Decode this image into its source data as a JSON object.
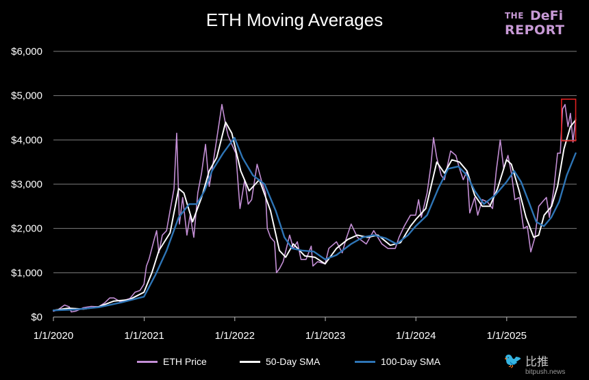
{
  "chart_data": {
    "type": "line",
    "title": "ETH Moving Averages",
    "xlabel": "",
    "ylabel": "",
    "x_ticks": [
      "1/1/2020",
      "1/1/2021",
      "1/1/2022",
      "1/1/2023",
      "1/1/2024",
      "1/1/2025"
    ],
    "y_ticks": [
      "$0",
      "$1,000",
      "$2,000",
      "$3,000",
      "$4,000",
      "$5,000",
      "$6,000"
    ],
    "ylim": [
      0,
      6000
    ],
    "xlim": [
      "2020-01-01",
      "2025-10-10"
    ],
    "grid": true,
    "legend_position": "bottom",
    "series": [
      {
        "name": "ETH Price",
        "color": "#c48fd6",
        "points": [
          [
            "2020-01-01",
            130
          ],
          [
            "2020-01-20",
            165
          ],
          [
            "2020-02-15",
            270
          ],
          [
            "2020-03-05",
            230
          ],
          [
            "2020-03-13",
            115
          ],
          [
            "2020-04-01",
            135
          ],
          [
            "2020-05-01",
            210
          ],
          [
            "2020-06-01",
            240
          ],
          [
            "2020-07-01",
            230
          ],
          [
            "2020-07-25",
            315
          ],
          [
            "2020-08-15",
            430
          ],
          [
            "2020-09-01",
            430
          ],
          [
            "2020-09-25",
            350
          ],
          [
            "2020-10-15",
            380
          ],
          [
            "2020-11-05",
            420
          ],
          [
            "2020-11-25",
            560
          ],
          [
            "2020-12-15",
            600
          ],
          [
            "2020-12-31",
            740
          ],
          [
            "2021-01-10",
            1150
          ],
          [
            "2021-01-20",
            1300
          ],
          [
            "2021-02-10",
            1750
          ],
          [
            "2021-02-20",
            1950
          ],
          [
            "2021-03-01",
            1450
          ],
          [
            "2021-03-15",
            1850
          ],
          [
            "2021-04-01",
            1950
          ],
          [
            "2021-04-15",
            2400
          ],
          [
            "2021-05-01",
            2900
          ],
          [
            "2021-05-12",
            4150
          ],
          [
            "2021-05-23",
            2100
          ],
          [
            "2021-06-05",
            2700
          ],
          [
            "2021-06-22",
            1850
          ],
          [
            "2021-07-05",
            2300
          ],
          [
            "2021-07-20",
            1800
          ],
          [
            "2021-08-05",
            2800
          ],
          [
            "2021-08-20",
            3250
          ],
          [
            "2021-09-05",
            3900
          ],
          [
            "2021-09-20",
            2950
          ],
          [
            "2021-10-05",
            3450
          ],
          [
            "2021-10-25",
            4200
          ],
          [
            "2021-11-10",
            4800
          ],
          [
            "2021-11-25",
            4350
          ],
          [
            "2021-12-05",
            4100
          ],
          [
            "2021-12-20",
            3900
          ],
          [
            "2022-01-05",
            3700
          ],
          [
            "2022-01-22",
            2450
          ],
          [
            "2022-02-10",
            3100
          ],
          [
            "2022-02-24",
            2550
          ],
          [
            "2022-03-10",
            2650
          ],
          [
            "2022-04-01",
            3450
          ],
          [
            "2022-04-20",
            3050
          ],
          [
            "2022-05-05",
            2800
          ],
          [
            "2022-05-12",
            2000
          ],
          [
            "2022-05-25",
            1800
          ],
          [
            "2022-06-10",
            1700
          ],
          [
            "2022-06-18",
            1000
          ],
          [
            "2022-07-01",
            1100
          ],
          [
            "2022-07-15",
            1250
          ],
          [
            "2022-08-10",
            1850
          ],
          [
            "2022-08-25",
            1550
          ],
          [
            "2022-09-10",
            1700
          ],
          [
            "2022-09-25",
            1300
          ],
          [
            "2022-10-15",
            1300
          ],
          [
            "2022-11-05",
            1600
          ],
          [
            "2022-11-12",
            1150
          ],
          [
            "2022-12-01",
            1250
          ],
          [
            "2022-12-31",
            1200
          ],
          [
            "2023-01-15",
            1550
          ],
          [
            "2023-02-15",
            1700
          ],
          [
            "2023-03-10",
            1450
          ],
          [
            "2023-03-25",
            1750
          ],
          [
            "2023-04-15",
            2100
          ],
          [
            "2023-05-10",
            1800
          ],
          [
            "2023-06-15",
            1650
          ],
          [
            "2023-07-15",
            1950
          ],
          [
            "2023-08-17",
            1650
          ],
          [
            "2023-09-10",
            1550
          ],
          [
            "2023-10-10",
            1550
          ],
          [
            "2023-10-25",
            1800
          ],
          [
            "2023-11-15",
            2050
          ],
          [
            "2023-12-10",
            2300
          ],
          [
            "2023-12-31",
            2300
          ],
          [
            "2024-01-12",
            2650
          ],
          [
            "2024-01-23",
            2250
          ],
          [
            "2024-02-15",
            2800
          ],
          [
            "2024-03-01",
            3400
          ],
          [
            "2024-03-12",
            4050
          ],
          [
            "2024-03-25",
            3600
          ],
          [
            "2024-04-12",
            3200
          ],
          [
            "2024-04-25",
            3100
          ],
          [
            "2024-05-20",
            3750
          ],
          [
            "2024-06-10",
            3650
          ],
          [
            "2024-06-25",
            3350
          ],
          [
            "2024-07-10",
            3100
          ],
          [
            "2024-07-25",
            3300
          ],
          [
            "2024-08-05",
            2350
          ],
          [
            "2024-08-25",
            2700
          ],
          [
            "2024-09-06",
            2300
          ],
          [
            "2024-09-25",
            2650
          ],
          [
            "2024-10-15",
            2600
          ],
          [
            "2024-11-05",
            2450
          ],
          [
            "2024-11-20",
            3300
          ],
          [
            "2024-12-06",
            4000
          ],
          [
            "2024-12-20",
            3350
          ],
          [
            "2025-01-06",
            3650
          ],
          [
            "2025-01-20",
            3250
          ],
          [
            "2025-02-03",
            2650
          ],
          [
            "2025-02-20",
            2700
          ],
          [
            "2025-03-10",
            2000
          ],
          [
            "2025-03-25",
            2050
          ],
          [
            "2025-04-08",
            1470
          ],
          [
            "2025-04-25",
            1800
          ],
          [
            "2025-05-10",
            2500
          ],
          [
            "2025-05-25",
            2600
          ],
          [
            "2025-06-10",
            2700
          ],
          [
            "2025-06-22",
            2250
          ],
          [
            "2025-07-10",
            2900
          ],
          [
            "2025-07-25",
            3700
          ],
          [
            "2025-08-05",
            3700
          ],
          [
            "2025-08-14",
            4700
          ],
          [
            "2025-08-24",
            4800
          ],
          [
            "2025-09-05",
            4300
          ],
          [
            "2025-09-15",
            4600
          ],
          [
            "2025-09-25",
            3950
          ],
          [
            "2025-10-06",
            4500
          ]
        ]
      },
      {
        "name": "50-Day SMA",
        "color": "#ffffff",
        "points": [
          [
            "2020-01-01",
            150
          ],
          [
            "2020-03-01",
            200
          ],
          [
            "2020-05-01",
            180
          ],
          [
            "2020-07-01",
            230
          ],
          [
            "2020-09-01",
            360
          ],
          [
            "2020-11-01",
            390
          ],
          [
            "2020-12-31",
            560
          ],
          [
            "2021-02-01",
            1000
          ],
          [
            "2021-03-01",
            1500
          ],
          [
            "2021-04-15",
            1900
          ],
          [
            "2021-05-20",
            2900
          ],
          [
            "2021-06-10",
            2800
          ],
          [
            "2021-07-15",
            2150
          ],
          [
            "2021-08-20",
            2700
          ],
          [
            "2021-09-20",
            3300
          ],
          [
            "2021-10-20",
            3600
          ],
          [
            "2021-11-25",
            4400
          ],
          [
            "2021-12-20",
            4150
          ],
          [
            "2022-01-25",
            3300
          ],
          [
            "2022-02-28",
            2850
          ],
          [
            "2022-04-10",
            3100
          ],
          [
            "2022-05-25",
            2400
          ],
          [
            "2022-06-30",
            1500
          ],
          [
            "2022-07-25",
            1350
          ],
          [
            "2022-08-25",
            1650
          ],
          [
            "2022-10-10",
            1380
          ],
          [
            "2022-11-20",
            1350
          ],
          [
            "2022-12-31",
            1200
          ],
          [
            "2023-02-15",
            1550
          ],
          [
            "2023-04-01",
            1750
          ],
          [
            "2023-05-10",
            1850
          ],
          [
            "2023-06-20",
            1800
          ],
          [
            "2023-08-01",
            1850
          ],
          [
            "2023-09-20",
            1620
          ],
          [
            "2023-10-31",
            1680
          ],
          [
            "2023-12-10",
            2050
          ],
          [
            "2023-12-31",
            2200
          ],
          [
            "2024-02-10",
            2450
          ],
          [
            "2024-03-25",
            3500
          ],
          [
            "2024-04-25",
            3250
          ],
          [
            "2024-05-25",
            3550
          ],
          [
            "2024-06-25",
            3500
          ],
          [
            "2024-07-25",
            3300
          ],
          [
            "2024-08-25",
            2750
          ],
          [
            "2024-09-25",
            2500
          ],
          [
            "2024-10-25",
            2500
          ],
          [
            "2024-11-25",
            2900
          ],
          [
            "2024-12-31",
            3550
          ],
          [
            "2025-01-20",
            3450
          ],
          [
            "2025-02-20",
            2850
          ],
          [
            "2025-03-20",
            2250
          ],
          [
            "2025-04-20",
            1800
          ],
          [
            "2025-05-10",
            1850
          ],
          [
            "2025-06-01",
            2300
          ],
          [
            "2025-07-01",
            2500
          ],
          [
            "2025-07-25",
            2950
          ],
          [
            "2025-08-20",
            3800
          ],
          [
            "2025-09-15",
            4300
          ],
          [
            "2025-10-06",
            4450
          ]
        ]
      },
      {
        "name": "100-Day SMA",
        "color": "#2e75b6",
        "points": [
          [
            "2020-01-01",
            150
          ],
          [
            "2020-04-01",
            170
          ],
          [
            "2020-07-01",
            220
          ],
          [
            "2020-10-01",
            330
          ],
          [
            "2020-12-31",
            460
          ],
          [
            "2021-02-15",
            950
          ],
          [
            "2021-04-01",
            1500
          ],
          [
            "2021-05-20",
            2250
          ],
          [
            "2021-07-01",
            2550
          ],
          [
            "2021-08-01",
            2550
          ],
          [
            "2021-09-01",
            2850
          ],
          [
            "2021-10-01",
            3300
          ],
          [
            "2021-11-15",
            3700
          ],
          [
            "2021-12-31",
            4050
          ],
          [
            "2022-02-01",
            3600
          ],
          [
            "2022-03-15",
            3200
          ],
          [
            "2022-05-01",
            3000
          ],
          [
            "2022-06-15",
            2400
          ],
          [
            "2022-07-20",
            1800
          ],
          [
            "2022-08-20",
            1550
          ],
          [
            "2022-10-01",
            1500
          ],
          [
            "2022-11-15",
            1480
          ],
          [
            "2022-12-31",
            1300
          ],
          [
            "2023-02-15",
            1400
          ],
          [
            "2023-04-15",
            1650
          ],
          [
            "2023-06-01",
            1800
          ],
          [
            "2023-07-15",
            1850
          ],
          [
            "2023-09-01",
            1780
          ],
          [
            "2023-10-15",
            1650
          ],
          [
            "2023-11-30",
            1850
          ],
          [
            "2023-12-31",
            2050
          ],
          [
            "2024-02-15",
            2300
          ],
          [
            "2024-03-31",
            2900
          ],
          [
            "2024-05-10",
            3350
          ],
          [
            "2024-06-20",
            3400
          ],
          [
            "2024-07-25",
            3200
          ],
          [
            "2024-08-25",
            2850
          ],
          [
            "2024-10-01",
            2550
          ],
          [
            "2024-11-15",
            2750
          ],
          [
            "2024-12-31",
            3050
          ],
          [
            "2025-01-31",
            3300
          ],
          [
            "2025-02-28",
            3050
          ],
          [
            "2025-03-31",
            2600
          ],
          [
            "2025-04-30",
            2150
          ],
          [
            "2025-05-31",
            2050
          ],
          [
            "2025-06-30",
            2250
          ],
          [
            "2025-07-31",
            2600
          ],
          [
            "2025-08-31",
            3200
          ],
          [
            "2025-10-06",
            3700
          ]
        ]
      }
    ],
    "annotation": {
      "type": "highlight-box",
      "x_from": "2025-08-10",
      "x_to": "2025-10-06",
      "y_from": 3980,
      "y_to": 4920,
      "color": "#e02020"
    }
  },
  "logo": {
    "line1": "THE",
    "line1b": "DeFi",
    "line2": "REPORT"
  },
  "watermark": {
    "text": "比推",
    "url": "bitpush.news"
  }
}
